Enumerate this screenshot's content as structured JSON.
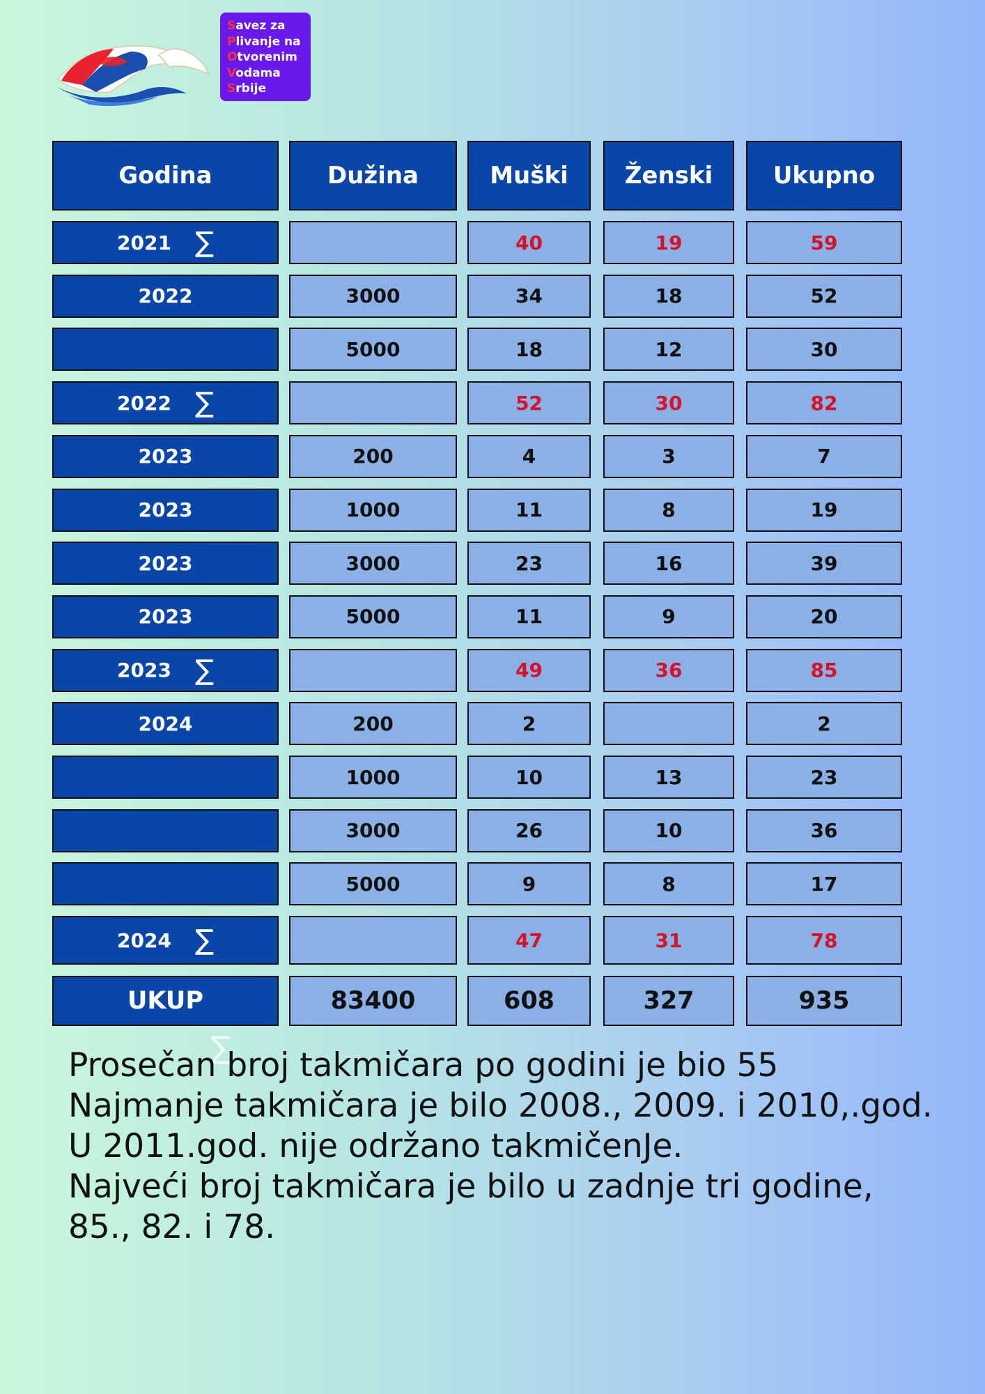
{
  "logo": {
    "icon": "swimmer-logo-icon",
    "badge": [
      {
        "initial": "S",
        "rest": "avez za"
      },
      {
        "initial": "P",
        "rest": "livanje na"
      },
      {
        "initial": "O",
        "rest": "tvorenim"
      },
      {
        "initial": "V",
        "rest": "odama"
      },
      {
        "initial": "S",
        "rest": "rbije"
      }
    ],
    "colors": {
      "badge_bg": "#6a18ec",
      "initial": "#ff2f3e"
    }
  },
  "table": {
    "headers": [
      "Godina",
      "Dužina",
      "Muški",
      "Ženski",
      "Ukupno"
    ],
    "sum_symbol": "∑",
    "rows": [
      {
        "godina": "2021",
        "sum": true,
        "duzina": "",
        "muski": "40",
        "zenski": "19",
        "ukupno": "59"
      },
      {
        "godina": "2022",
        "sum": false,
        "duzina": "3000",
        "muski": "34",
        "zenski": "18",
        "ukupno": "52"
      },
      {
        "godina": "",
        "sum": false,
        "duzina": "5000",
        "muski": "18",
        "zenski": "12",
        "ukupno": "30"
      },
      {
        "godina": "2022",
        "sum": true,
        "duzina": "",
        "muski": "52",
        "zenski": "30",
        "ukupno": "82"
      },
      {
        "godina": "2023",
        "sum": false,
        "duzina": "200",
        "muski": "4",
        "zenski": "3",
        "ukupno": "7"
      },
      {
        "godina": "2023",
        "sum": false,
        "duzina": "1000",
        "muski": "11",
        "zenski": "8",
        "ukupno": "19"
      },
      {
        "godina": "2023",
        "sum": false,
        "duzina": "3000",
        "muski": "23",
        "zenski": "16",
        "ukupno": "39"
      },
      {
        "godina": "2023",
        "sum": false,
        "duzina": "5000",
        "muski": "11",
        "zenski": "9",
        "ukupno": "20"
      },
      {
        "godina": "2023",
        "sum": true,
        "duzina": "",
        "muski": "49",
        "zenski": "36",
        "ukupno": "85"
      },
      {
        "godina": "2024",
        "sum": false,
        "duzina": "200",
        "muski": "2",
        "zenski": "",
        "ukupno": "2"
      },
      {
        "godina": "",
        "sum": false,
        "duzina": "1000",
        "muski": "10",
        "zenski": "13",
        "ukupno": "23"
      },
      {
        "godina": "",
        "sum": false,
        "duzina": "3000",
        "muski": "26",
        "zenski": "10",
        "ukupno": "36"
      },
      {
        "godina": "",
        "sum": false,
        "duzina": "5000",
        "muski": "9",
        "zenski": "8",
        "ukupno": "17"
      },
      {
        "godina": "2024",
        "sum": true,
        "duzina": "",
        "muski": "47",
        "zenski": "31",
        "ukupno": "78"
      }
    ],
    "total": {
      "godina": "UKUP",
      "duzina": "83400",
      "muski": "608",
      "zenski": "327",
      "ukupno": "935"
    },
    "colors": {
      "header_bg": "#0a45a8",
      "cell_bg": "#8bb0e5",
      "sum_text": "#d4132a"
    }
  },
  "summary": {
    "lines": [
      "Prosečan broj takmičara po godini je bio 55",
      "Najmanje takmičara je bilo 2008., 2009. i 2010,.god.",
      "U 2011.god. nije održano takmičenJe.",
      "Najveći broj takmičara je bilo u zadnje tri godine,",
      "85., 82. i 78."
    ],
    "faint_symbol": "∑"
  }
}
